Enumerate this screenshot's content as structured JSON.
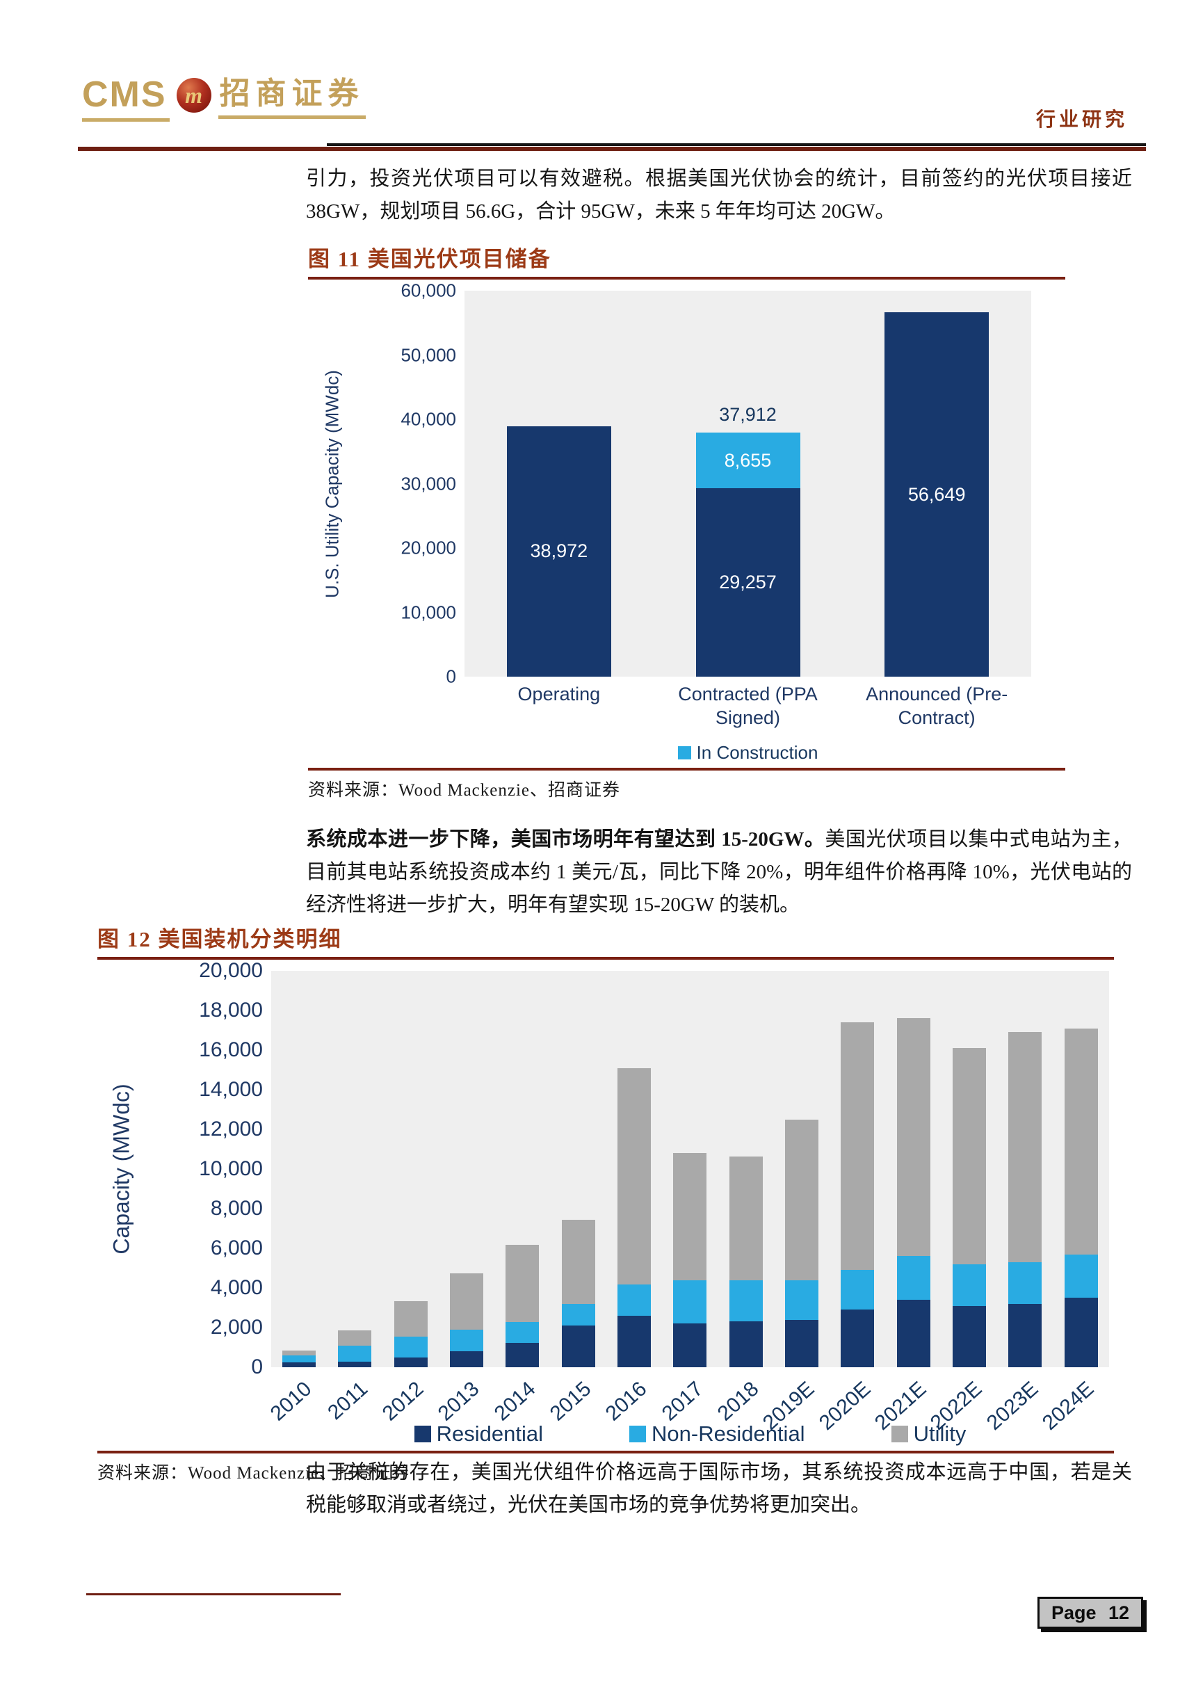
{
  "header": {
    "logo_cms": "CMS",
    "logo_m": "m",
    "logo_cn": "招商证券",
    "right_label": "行业研究"
  },
  "paragraphs": {
    "p1": "引力，投资光伏项目可以有效避税。根据美国光伏协会的统计，目前签约的光伏项目接近 38GW，规划项目 56.6G，合计 95GW，未来 5 年年均可达 20GW。",
    "p2_bold": "系统成本进一步下降，美国市场明年有望达到 15-20GW。",
    "p2_rest": "美国光伏项目以集中式电站为主，目前其电站系统投资成本约 1 美元/瓦，同比下降 20%，明年组件价格再降 10%，光伏电站的经济性将进一步扩大，明年有望实现 15-20GW 的装机。",
    "p3": "由于关税的存在，美国光伏组件价格远高于国际市场，其系统投资成本远高于中国，若是关税能够取消或者绕过，光伏在美国市场的竞争优势将更加突出。"
  },
  "figure11": {
    "title": "图 11 美国光伏项目储备",
    "source": "资料来源：Wood Mackenzie、招商证券"
  },
  "figure12": {
    "title": "图 12  美国装机分类明细",
    "source": "资料来源：Wood Mackenzie、招商证券"
  },
  "footer": {
    "page_label": "Page 12"
  },
  "colors": {
    "navy": "#17386d",
    "light_blue": "#29abe2",
    "gray_bar": "#a9a9a9",
    "maroon_rule": "#7a2012",
    "title_red": "#9c3a16",
    "gold": "#c3a05a"
  },
  "chart_data": [
    {
      "type": "bar",
      "stacked": true,
      "title": "图 11 美国光伏项目储备",
      "ylabel": "U.S. Utility Capacity (MWdc)",
      "ylim": [
        0,
        60000
      ],
      "yticks": [
        "60,000",
        "50,000",
        "40,000",
        "30,000",
        "20,000",
        "10,000",
        "0"
      ],
      "grid": false,
      "categories": [
        "Operating",
        "Contracted (PPA\nSigned)",
        "Announced (Pre-\nContract)"
      ],
      "series": [
        {
          "name": "Capacity",
          "color": "#17386d",
          "values": [
            38972,
            29257,
            56649
          ]
        },
        {
          "name": "In Construction",
          "color": "#29abe2",
          "values": [
            0,
            8655,
            0
          ]
        }
      ],
      "bar_labels": [
        {
          "bar": 0,
          "series": 0,
          "text": "38,972",
          "color": "#ffffff"
        },
        {
          "bar": 1,
          "series": 0,
          "text": "29,257",
          "color": "#ffffff"
        },
        {
          "bar": 1,
          "series": 1,
          "text": "8,655",
          "color": "#ffffff"
        },
        {
          "bar": 2,
          "series": 0,
          "text": "56,649",
          "color": "#ffffff"
        }
      ],
      "total_labels": [
        null,
        "37,912",
        null
      ],
      "legend": [
        {
          "label": "In Construction",
          "color": "#29abe2"
        }
      ],
      "legend_position": "bottom"
    },
    {
      "type": "bar",
      "stacked": true,
      "title": "图 12 美国装机分类明细",
      "ylabel": "Capacity (MWdc)",
      "ylim": [
        0,
        20000
      ],
      "yticks": [
        "20,000",
        "18,000",
        "16,000",
        "14,000",
        "12,000",
        "10,000",
        "8,000",
        "6,000",
        "4,000",
        "2,000",
        "0"
      ],
      "grid": false,
      "categories": [
        "2010",
        "2011",
        "2012",
        "2013",
        "2014",
        "2015",
        "2016",
        "2017",
        "2018",
        "2019E",
        "2020E",
        "2021E",
        "2022E",
        "2023E",
        "2024E"
      ],
      "series": [
        {
          "name": "Residential",
          "color": "#17386d",
          "values": [
            246,
            297,
            494,
            792,
            1231,
            2099,
            2583,
            2227,
            2322,
            2400,
            2900,
            3400,
            3100,
            3200,
            3500
          ]
        },
        {
          "name": "Non-Residential",
          "color": "#29abe2",
          "values": [
            340,
            800,
            1043,
            1112,
            1036,
            1104,
            1586,
            2147,
            2067,
            2000,
            2000,
            2200,
            2100,
            2100,
            2200
          ]
        },
        {
          "name": "Utility",
          "color": "#a9a9a9",
          "values": [
            267,
            758,
            1802,
            2847,
            3924,
            4227,
            10910,
            6442,
            6236,
            8100,
            12500,
            12000,
            10900,
            11600,
            11400
          ]
        }
      ],
      "bar_labels": [],
      "total_labels": [],
      "legend": [
        {
          "label": "Residential",
          "color": "#17386d"
        },
        {
          "label": "Non-Residential",
          "color": "#29abe2"
        },
        {
          "label": "Utility",
          "color": "#a9a9a9"
        }
      ],
      "legend_position": "bottom"
    }
  ]
}
